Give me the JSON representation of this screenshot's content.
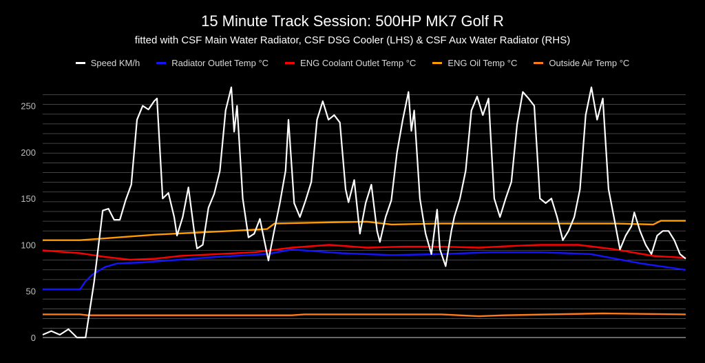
{
  "chart_data": {
    "type": "line",
    "title": "15 Minute Track Session: 500HP MK7 Golf R",
    "subtitle": "fitted with CSF Main Water Radiator, CSF DSG Cooler (LHS) & CSF Aux Water Radiator (RHS)",
    "xlabel": "",
    "ylabel": "",
    "ylim": [
      0,
      275
    ],
    "yticks": [
      0,
      50,
      100,
      150,
      200,
      250
    ],
    "grid": true,
    "legend_position": "top-center",
    "x_count": 230,
    "series": [
      {
        "name": "Speed KM/h",
        "color": "#ffffff",
        "keypoints": [
          [
            0,
            3
          ],
          [
            3,
            7
          ],
          [
            6,
            3
          ],
          [
            9,
            9
          ],
          [
            12,
            0
          ],
          [
            15,
            0
          ],
          [
            18,
            60
          ],
          [
            21,
            137
          ],
          [
            23,
            139
          ],
          [
            25,
            127
          ],
          [
            27,
            127
          ],
          [
            29,
            148
          ],
          [
            31,
            165
          ],
          [
            33,
            235
          ],
          [
            35,
            250
          ],
          [
            37,
            246
          ],
          [
            39,
            255
          ],
          [
            40,
            258
          ],
          [
            42,
            150
          ],
          [
            44,
            156
          ],
          [
            46,
            130
          ],
          [
            47,
            110
          ],
          [
            49,
            130
          ],
          [
            51,
            162
          ],
          [
            53,
            115
          ],
          [
            54,
            96
          ],
          [
            56,
            100
          ],
          [
            58,
            140
          ],
          [
            60,
            155
          ],
          [
            62,
            180
          ],
          [
            64,
            245
          ],
          [
            66,
            270
          ],
          [
            67,
            222
          ],
          [
            68,
            250
          ],
          [
            70,
            150
          ],
          [
            72,
            108
          ],
          [
            74,
            112
          ],
          [
            76,
            128
          ],
          [
            78,
            98
          ],
          [
            79,
            83
          ],
          [
            81,
            115
          ],
          [
            83,
            145
          ],
          [
            85,
            180
          ],
          [
            86,
            235
          ],
          [
            88,
            145
          ],
          [
            90,
            130
          ],
          [
            92,
            148
          ],
          [
            94,
            168
          ],
          [
            96,
            235
          ],
          [
            98,
            255
          ],
          [
            100,
            235
          ],
          [
            102,
            240
          ],
          [
            104,
            232
          ],
          [
            106,
            160
          ],
          [
            107,
            146
          ],
          [
            109,
            170
          ],
          [
            111,
            112
          ],
          [
            113,
            145
          ],
          [
            115,
            165
          ],
          [
            117,
            115
          ],
          [
            118,
            103
          ],
          [
            120,
            130
          ],
          [
            122,
            148
          ],
          [
            124,
            200
          ],
          [
            126,
            235
          ],
          [
            128,
            265
          ],
          [
            129,
            223
          ],
          [
            130,
            245
          ],
          [
            132,
            150
          ],
          [
            134,
            112
          ],
          [
            136,
            90
          ],
          [
            138,
            138
          ],
          [
            139,
            95
          ],
          [
            141,
            77
          ],
          [
            143,
            115
          ],
          [
            144,
            130
          ],
          [
            146,
            150
          ],
          [
            148,
            180
          ],
          [
            150,
            245
          ],
          [
            152,
            260
          ],
          [
            154,
            240
          ],
          [
            156,
            258
          ],
          [
            158,
            150
          ],
          [
            160,
            130
          ],
          [
            162,
            150
          ],
          [
            164,
            168
          ],
          [
            166,
            230
          ],
          [
            168,
            265
          ],
          [
            170,
            258
          ],
          [
            172,
            250
          ],
          [
            174,
            150
          ],
          [
            176,
            145
          ],
          [
            178,
            150
          ],
          [
            180,
            130
          ],
          [
            182,
            105
          ],
          [
            184,
            115
          ],
          [
            186,
            130
          ],
          [
            188,
            160
          ],
          [
            190,
            240
          ],
          [
            192,
            270
          ],
          [
            194,
            235
          ],
          [
            196,
            258
          ],
          [
            198,
            160
          ],
          [
            200,
            128
          ],
          [
            202,
            95
          ],
          [
            204,
            110
          ],
          [
            206,
            120
          ],
          [
            207,
            135
          ],
          [
            209,
            115
          ],
          [
            211,
            100
          ],
          [
            213,
            90
          ],
          [
            215,
            110
          ],
          [
            217,
            115
          ],
          [
            219,
            115
          ],
          [
            221,
            105
          ],
          [
            223,
            90
          ],
          [
            225,
            85
          ]
        ],
        "expand": 4.07
      },
      {
        "name": "Radiator Outlet Temp °C",
        "color": "#1414ff",
        "keypoints": [
          [
            0,
            52
          ],
          [
            15,
            52
          ],
          [
            17,
            60
          ],
          [
            20,
            68
          ],
          [
            25,
            76
          ],
          [
            30,
            80
          ],
          [
            40,
            81
          ],
          [
            55,
            84
          ],
          [
            70,
            87
          ],
          [
            90,
            90
          ],
          [
            100,
            95
          ],
          [
            120,
            91
          ],
          [
            140,
            89
          ],
          [
            160,
            90
          ],
          [
            180,
            92
          ],
          [
            200,
            92
          ],
          [
            220,
            90
          ],
          [
            240,
            80
          ],
          [
            258,
            73
          ]
        ]
      },
      {
        "name": "ENG Coolant Outlet Temp °C",
        "color": "#ff0000",
        "keypoints": [
          [
            0,
            94
          ],
          [
            15,
            91
          ],
          [
            25,
            87
          ],
          [
            35,
            84
          ],
          [
            45,
            85
          ],
          [
            55,
            88
          ],
          [
            70,
            90
          ],
          [
            85,
            92
          ],
          [
            100,
            97
          ],
          [
            115,
            100
          ],
          [
            130,
            97
          ],
          [
            145,
            98
          ],
          [
            160,
            98
          ],
          [
            175,
            97
          ],
          [
            190,
            99
          ],
          [
            200,
            100
          ],
          [
            215,
            100
          ],
          [
            230,
            95
          ],
          [
            245,
            88
          ],
          [
            258,
            86
          ]
        ]
      },
      {
        "name": "ENG Oil Temp °C",
        "color": "#ff9900",
        "keypoints": [
          [
            0,
            105
          ],
          [
            15,
            105
          ],
          [
            30,
            108
          ],
          [
            45,
            111
          ],
          [
            60,
            113
          ],
          [
            75,
            115
          ],
          [
            90,
            117
          ],
          [
            93,
            123
          ],
          [
            110,
            124
          ],
          [
            130,
            125
          ],
          [
            140,
            122
          ],
          [
            160,
            123
          ],
          [
            190,
            123
          ],
          [
            230,
            123
          ],
          [
            245,
            122
          ],
          [
            248,
            126
          ],
          [
            258,
            126
          ]
        ]
      },
      {
        "name": "Outside Air Temp °C",
        "color": "#ff7a1a",
        "keypoints": [
          [
            0,
            25
          ],
          [
            15,
            25
          ],
          [
            18,
            24
          ],
          [
            100,
            24
          ],
          [
            105,
            25
          ],
          [
            160,
            25
          ],
          [
            175,
            23
          ],
          [
            185,
            24
          ],
          [
            225,
            26
          ],
          [
            258,
            25
          ]
        ]
      }
    ]
  }
}
